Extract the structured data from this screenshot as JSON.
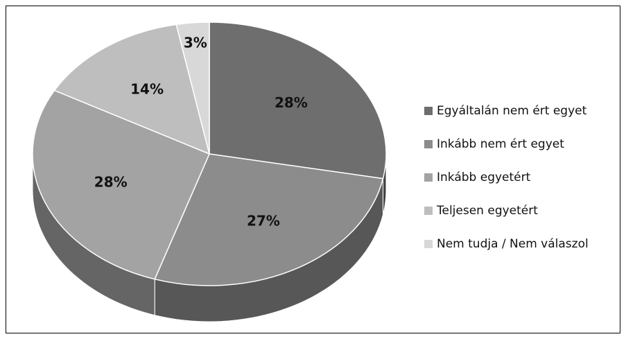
{
  "chart_data": {
    "type": "pie",
    "categories": [
      "Egyáltalán nem ért egyet",
      "Inkább nem ért egyet",
      "Inkább egyetért",
      "Teljesen egyetért",
      "Nem tudja / Nem válaszol"
    ],
    "values": [
      28,
      27,
      28,
      14,
      3
    ],
    "value_labels": [
      "28%",
      "27%",
      "28%",
      "14%",
      "3%"
    ],
    "colors": [
      "#6e6e6e",
      "#8c8c8c",
      "#a3a3a3",
      "#bebebe",
      "#d8d8d8"
    ],
    "legend": "right"
  }
}
